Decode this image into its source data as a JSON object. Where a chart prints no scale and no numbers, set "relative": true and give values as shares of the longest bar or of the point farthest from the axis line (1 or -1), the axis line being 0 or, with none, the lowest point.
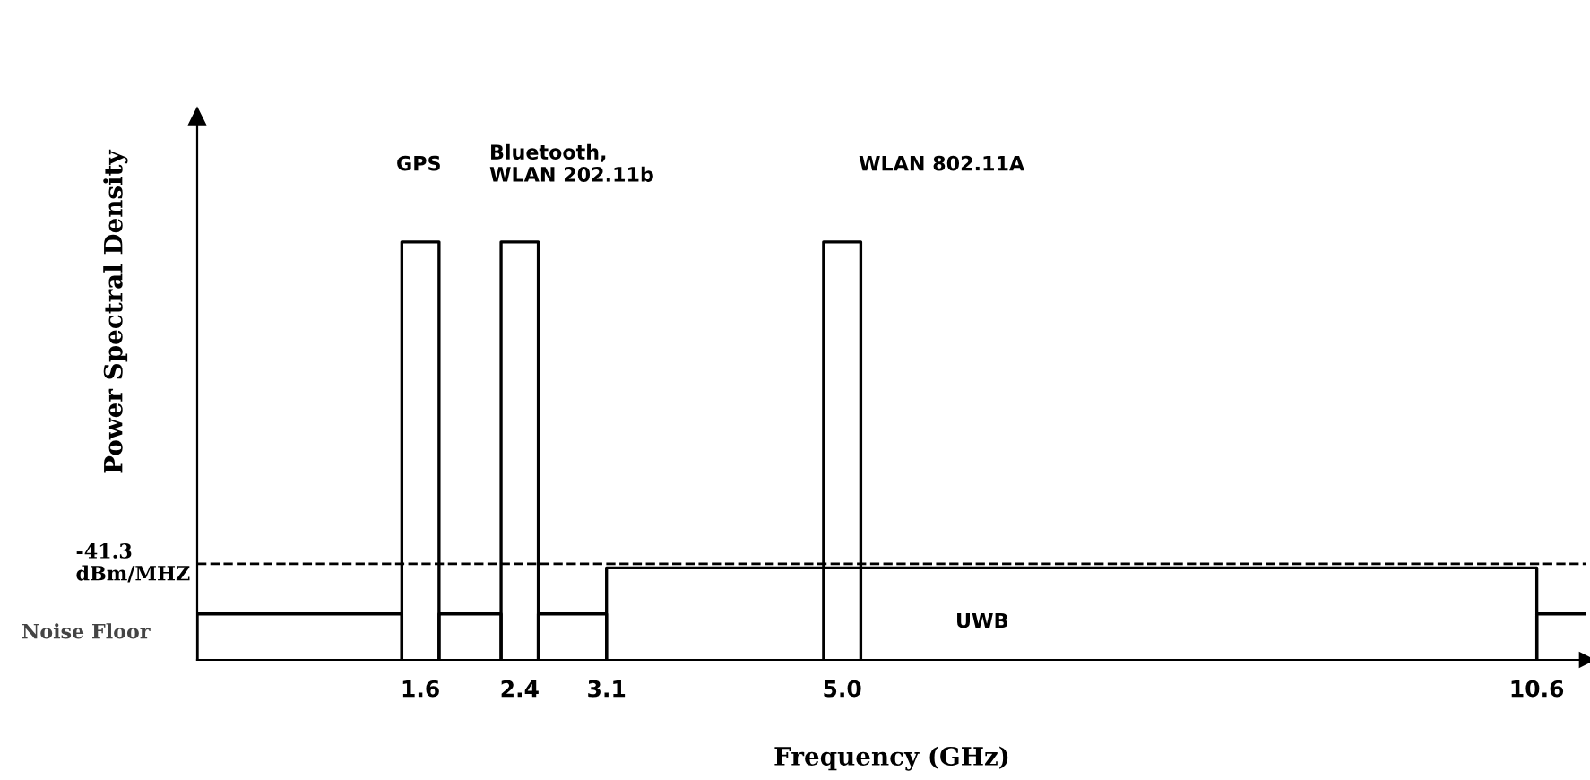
{
  "chart_data": {
    "type": "line",
    "relative": true,
    "xlabel": "Frequency (GHz)",
    "ylabel": "Power Spectral Density",
    "xlim": [
      -0.2,
      11.0
    ],
    "xticks": [
      1.6,
      2.4,
      3.1,
      {
        "value": 5.0,
        "label": "5.0"
      },
      10.6
    ],
    "series": [
      {
        "color": "#000000",
        "x": [
          -0.2,
          -0.2,
          1.45,
          1.45
        ],
        "values": [
          0,
          0.11,
          0.11,
          0
        ]
      },
      {
        "color": "#000000",
        "x": [
          1.45,
          1.45,
          1.75,
          1.75
        ],
        "values": [
          0,
          1,
          1,
          0
        ]
      },
      {
        "color": "#000000",
        "x": [
          1.75,
          1.75,
          2.25,
          2.25
        ],
        "values": [
          0,
          0.11,
          0.11,
          0
        ]
      },
      {
        "color": "#000000",
        "x": [
          2.25,
          2.25,
          2.55,
          2.55
        ],
        "values": [
          0,
          1,
          1,
          0
        ]
      },
      {
        "color": "#000000",
        "x": [
          2.55,
          2.55,
          3.1,
          3.1
        ],
        "values": [
          0,
          0.11,
          0.11,
          0
        ]
      },
      {
        "color": "#000000",
        "x": [
          3.1,
          3.1,
          10.6,
          10.6
        ],
        "values": [
          0,
          0.22,
          0.22,
          0
        ]
      },
      {
        "color": "#000000",
        "x": [
          4.85,
          4.85,
          5.15,
          5.15
        ],
        "values": [
          0,
          1,
          1,
          0
        ]
      },
      {
        "color": "#000000",
        "x": [
          10.6,
          10.6,
          11.0
        ],
        "values": [
          0,
          0.11,
          0.11
        ]
      }
    ],
    "ref_lines": [
      {
        "axis": "y",
        "value": 0.23,
        "label": "-41.3\ndBm/MHZ",
        "line_style": "dashed",
        "color": "#000000"
      }
    ],
    "annotations": [
      "GPS",
      "Bluetooth,\nWLAN 202.11b",
      "WLAN 802.11A",
      "UWB",
      "Noise Floor"
    ],
    "marker": "none",
    "line_style": "solid",
    "grid": false,
    "legend": false
  }
}
